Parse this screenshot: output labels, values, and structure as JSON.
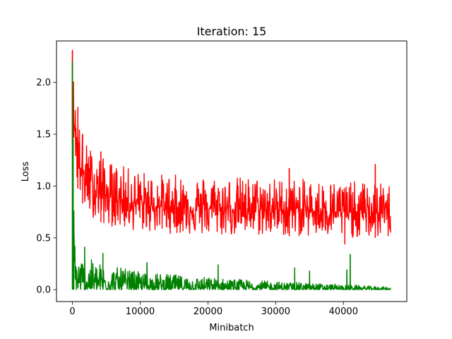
{
  "chart_data": {
    "type": "line",
    "title": "Iteration: 15",
    "xlabel": "Minibatch",
    "ylabel": "Loss",
    "xlim": [
      -2350,
      49350
    ],
    "ylim": [
      -0.115,
      2.4
    ],
    "x_ticks": [
      0,
      10000,
      20000,
      30000,
      40000
    ],
    "x_tick_labels": [
      "0",
      "10000",
      "20000",
      "30000",
      "40000"
    ],
    "y_ticks": [
      0.0,
      0.5,
      1.0,
      1.5,
      2.0
    ],
    "y_tick_labels": [
      "0.0",
      "0.5",
      "1.0",
      "1.5",
      "2.0"
    ],
    "grid": false,
    "legend": "none",
    "x_max": 47000,
    "series": [
      {
        "color": "#ff0000",
        "envelope": [
          {
            "x": 0,
            "low": 1.4,
            "high": 2.31
          },
          {
            "x": 300,
            "low": 1.4,
            "high": 1.85
          },
          {
            "x": 700,
            "low": 1.0,
            "high": 1.76
          },
          {
            "x": 1200,
            "low": 0.88,
            "high": 1.55
          },
          {
            "x": 2000,
            "low": 0.75,
            "high": 1.42
          },
          {
            "x": 3000,
            "low": 0.7,
            "high": 1.35
          },
          {
            "x": 5000,
            "low": 0.62,
            "high": 1.25
          },
          {
            "x": 8000,
            "low": 0.58,
            "high": 1.18
          },
          {
            "x": 12000,
            "low": 0.55,
            "high": 1.12
          },
          {
            "x": 20000,
            "low": 0.52,
            "high": 1.1
          },
          {
            "x": 30000,
            "low": 0.52,
            "high": 1.08
          },
          {
            "x": 40000,
            "low": 0.5,
            "high": 1.05
          },
          {
            "x": 47000,
            "low": 0.5,
            "high": 1.02
          }
        ],
        "spikes": [
          {
            "x": 0,
            "y": 2.31
          },
          {
            "x": 800,
            "y": 1.76
          },
          {
            "x": 1500,
            "y": 1.5
          },
          {
            "x": 4200,
            "y": 1.33
          },
          {
            "x": 32000,
            "y": 1.17
          },
          {
            "x": 40200,
            "y": 0.44
          },
          {
            "x": 44700,
            "y": 1.21
          }
        ]
      },
      {
        "color": "#008000",
        "envelope": [
          {
            "x": 0,
            "low": 0.0,
            "high": 2.2
          },
          {
            "x": 200,
            "low": 0.0,
            "high": 0.76
          },
          {
            "x": 600,
            "low": 0.0,
            "high": 0.36
          },
          {
            "x": 2000,
            "low": 0.0,
            "high": 0.31
          },
          {
            "x": 5000,
            "low": 0.0,
            "high": 0.24
          },
          {
            "x": 10000,
            "low": 0.0,
            "high": 0.17
          },
          {
            "x": 20000,
            "low": 0.0,
            "high": 0.12
          },
          {
            "x": 30000,
            "low": 0.0,
            "high": 0.08
          },
          {
            "x": 40000,
            "low": 0.0,
            "high": 0.05
          },
          {
            "x": 47000,
            "low": 0.0,
            "high": 0.025
          }
        ],
        "spikes": [
          {
            "x": 0,
            "y": 2.2
          },
          {
            "x": 100,
            "y": 1.45
          },
          {
            "x": 200,
            "y": 0.76
          },
          {
            "x": 1800,
            "y": 0.41
          },
          {
            "x": 4500,
            "y": 0.35
          },
          {
            "x": 11000,
            "y": 0.26
          },
          {
            "x": 21500,
            "y": 0.24
          },
          {
            "x": 32800,
            "y": 0.21
          },
          {
            "x": 35000,
            "y": 0.18
          },
          {
            "x": 40500,
            "y": 0.19
          },
          {
            "x": 41000,
            "y": 0.34
          }
        ]
      }
    ]
  }
}
